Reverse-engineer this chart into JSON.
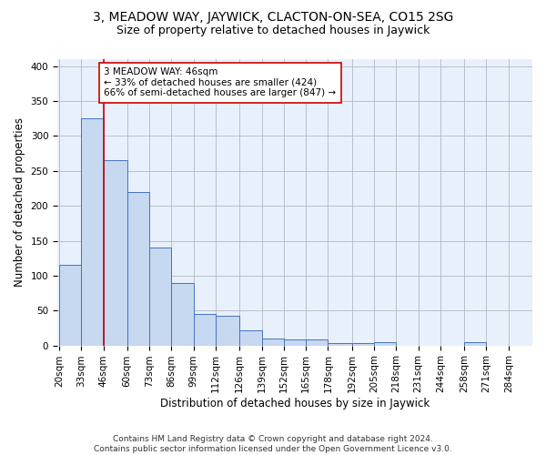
{
  "title": "3, MEADOW WAY, JAYWICK, CLACTON-ON-SEA, CO15 2SG",
  "subtitle": "Size of property relative to detached houses in Jaywick",
  "xlabel": "Distribution of detached houses by size in Jaywick",
  "ylabel": "Number of detached properties",
  "footnote": "Contains HM Land Registry data © Crown copyright and database right 2024.\nContains public sector information licensed under the Open Government Licence v3.0.",
  "bin_edges": [
    20,
    33,
    46,
    60,
    73,
    86,
    99,
    112,
    126,
    139,
    152,
    165,
    178,
    192,
    205,
    218,
    231,
    244,
    258,
    271,
    284
  ],
  "bar_heights": [
    115,
    325,
    265,
    220,
    140,
    90,
    45,
    42,
    22,
    10,
    8,
    8,
    3,
    3,
    5,
    0,
    0,
    0,
    5,
    0
  ],
  "bar_color": "#c6d9f0",
  "bar_edge_color": "#4472c4",
  "vline_x": 46,
  "vline_color": "#cc0000",
  "annotation_text": "3 MEADOW WAY: 46sqm\n← 33% of detached houses are smaller (424)\n66% of semi-detached houses are larger (847) →",
  "annotation_box_color": "#ffffff",
  "annotation_border_color": "#cc0000",
  "ylim": [
    0,
    410
  ],
  "background_color": "#e8f0fb",
  "title_fontsize": 10,
  "subtitle_fontsize": 9,
  "tick_label_fontsize": 7.5,
  "ylabel_fontsize": 8.5,
  "xlabel_fontsize": 8.5,
  "annotation_fontsize": 7.5,
  "footnote_fontsize": 6.5
}
